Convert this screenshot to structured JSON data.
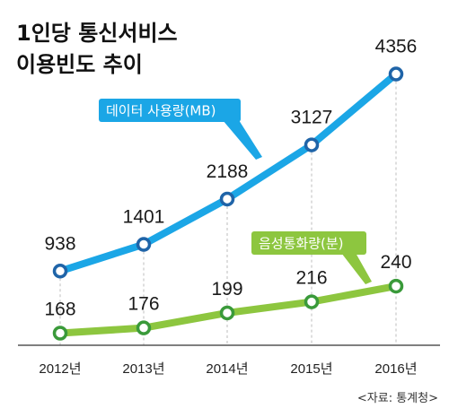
{
  "title_lines": [
    "1인당 통신서비스",
    "이용빈도 추이"
  ],
  "source": "<자료: 통계청>",
  "colors": {
    "data_series": "#1ba6e6",
    "voice_series": "#8dc63f",
    "voice_marker": "#3a9a3a",
    "data_marker": "#1f64a8",
    "gridline": "#bdbdbd",
    "axis": "#555555"
  },
  "chart_data": {
    "type": "line",
    "categories": [
      "2012년",
      "2013년",
      "2014년",
      "2015년",
      "2016년"
    ],
    "series": [
      {
        "name": "데이터 사용량(MB)",
        "values": [
          938,
          1401,
          2188,
          3127,
          4356
        ]
      },
      {
        "name": "음성통화량(분)",
        "values": [
          168,
          176,
          199,
          216,
          240
        ]
      }
    ],
    "title": "1인당 통신서비스 이용빈도 추이",
    "grid": "vertical-dashed",
    "legend": "inline-tags"
  }
}
